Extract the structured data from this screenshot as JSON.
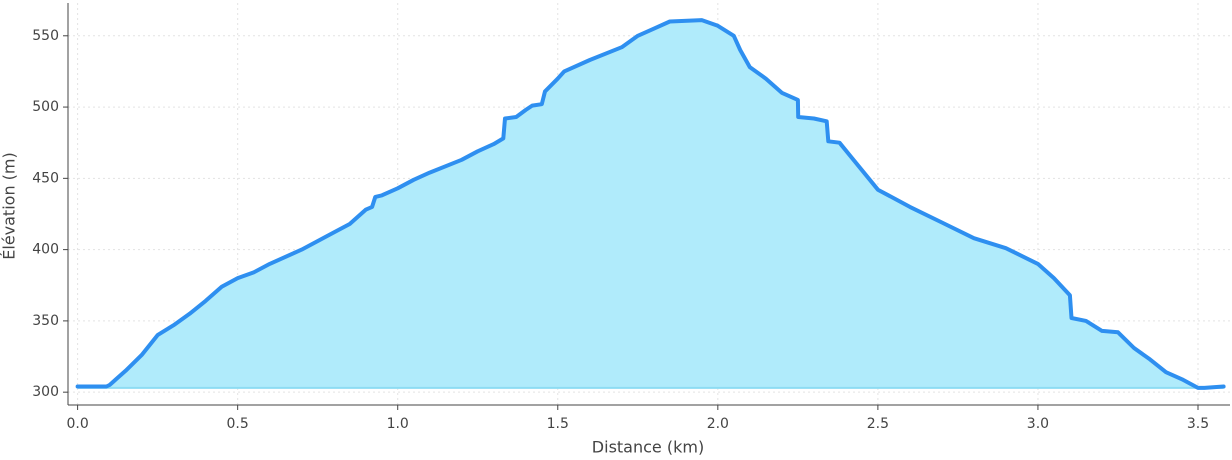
{
  "chart_data": {
    "type": "area",
    "xlabel": "Distance (km)",
    "ylabel": "Élévation (m)",
    "x": [
      0,
      0.09,
      0.1,
      0.12,
      0.15,
      0.2,
      0.25,
      0.3,
      0.35,
      0.4,
      0.45,
      0.5,
      0.55,
      0.6,
      0.7,
      0.8,
      0.85,
      0.9,
      0.92,
      0.93,
      0.95,
      1.0,
      1.05,
      1.1,
      1.2,
      1.25,
      1.3,
      1.33,
      1.335,
      1.37,
      1.4,
      1.42,
      1.45,
      1.46,
      1.5,
      1.52,
      1.6,
      1.7,
      1.75,
      1.8,
      1.85,
      1.95,
      2.0,
      2.05,
      2.07,
      2.1,
      2.15,
      2.2,
      2.25,
      2.251,
      2.3,
      2.34,
      2.345,
      2.38,
      2.42,
      2.5,
      2.6,
      2.7,
      2.8,
      2.9,
      3.0,
      3.05,
      3.1,
      3.105,
      3.15,
      3.2,
      3.25,
      3.3,
      3.35,
      3.4,
      3.45,
      3.5,
      3.52,
      3.58
    ],
    "values": [
      304,
      304,
      305,
      309,
      315,
      326,
      340,
      347,
      355,
      364,
      374,
      380,
      384,
      390,
      400,
      412,
      418,
      428,
      430,
      437,
      438,
      443,
      449,
      454,
      463,
      469,
      474,
      478,
      492,
      493,
      498,
      501,
      502,
      511,
      520,
      525,
      533,
      542,
      550,
      555,
      560,
      561,
      557,
      550,
      540,
      528,
      520,
      510,
      505,
      493,
      492,
      490,
      476,
      475,
      464,
      442,
      430,
      419,
      408,
      401,
      390,
      380,
      368,
      352,
      350,
      343,
      342,
      331,
      323,
      314,
      309,
      303,
      303,
      304
    ],
    "color": "#2e8ff0",
    "fill_color": "#b0ebfb",
    "xlim": [
      -0.03,
      3.6
    ],
    "xticks": [
      {
        "value": 0,
        "label": "0.0"
      },
      0.5,
      {
        "value": 1,
        "label": "1.0"
      },
      1.5,
      {
        "value": 2,
        "label": "2.0"
      },
      2.5,
      {
        "value": 3,
        "label": "3.0"
      },
      3.5
    ],
    "ylim": [
      291,
      573
    ],
    "yticks": [
      300,
      350,
      400,
      450,
      500,
      550
    ],
    "grid": true
  }
}
